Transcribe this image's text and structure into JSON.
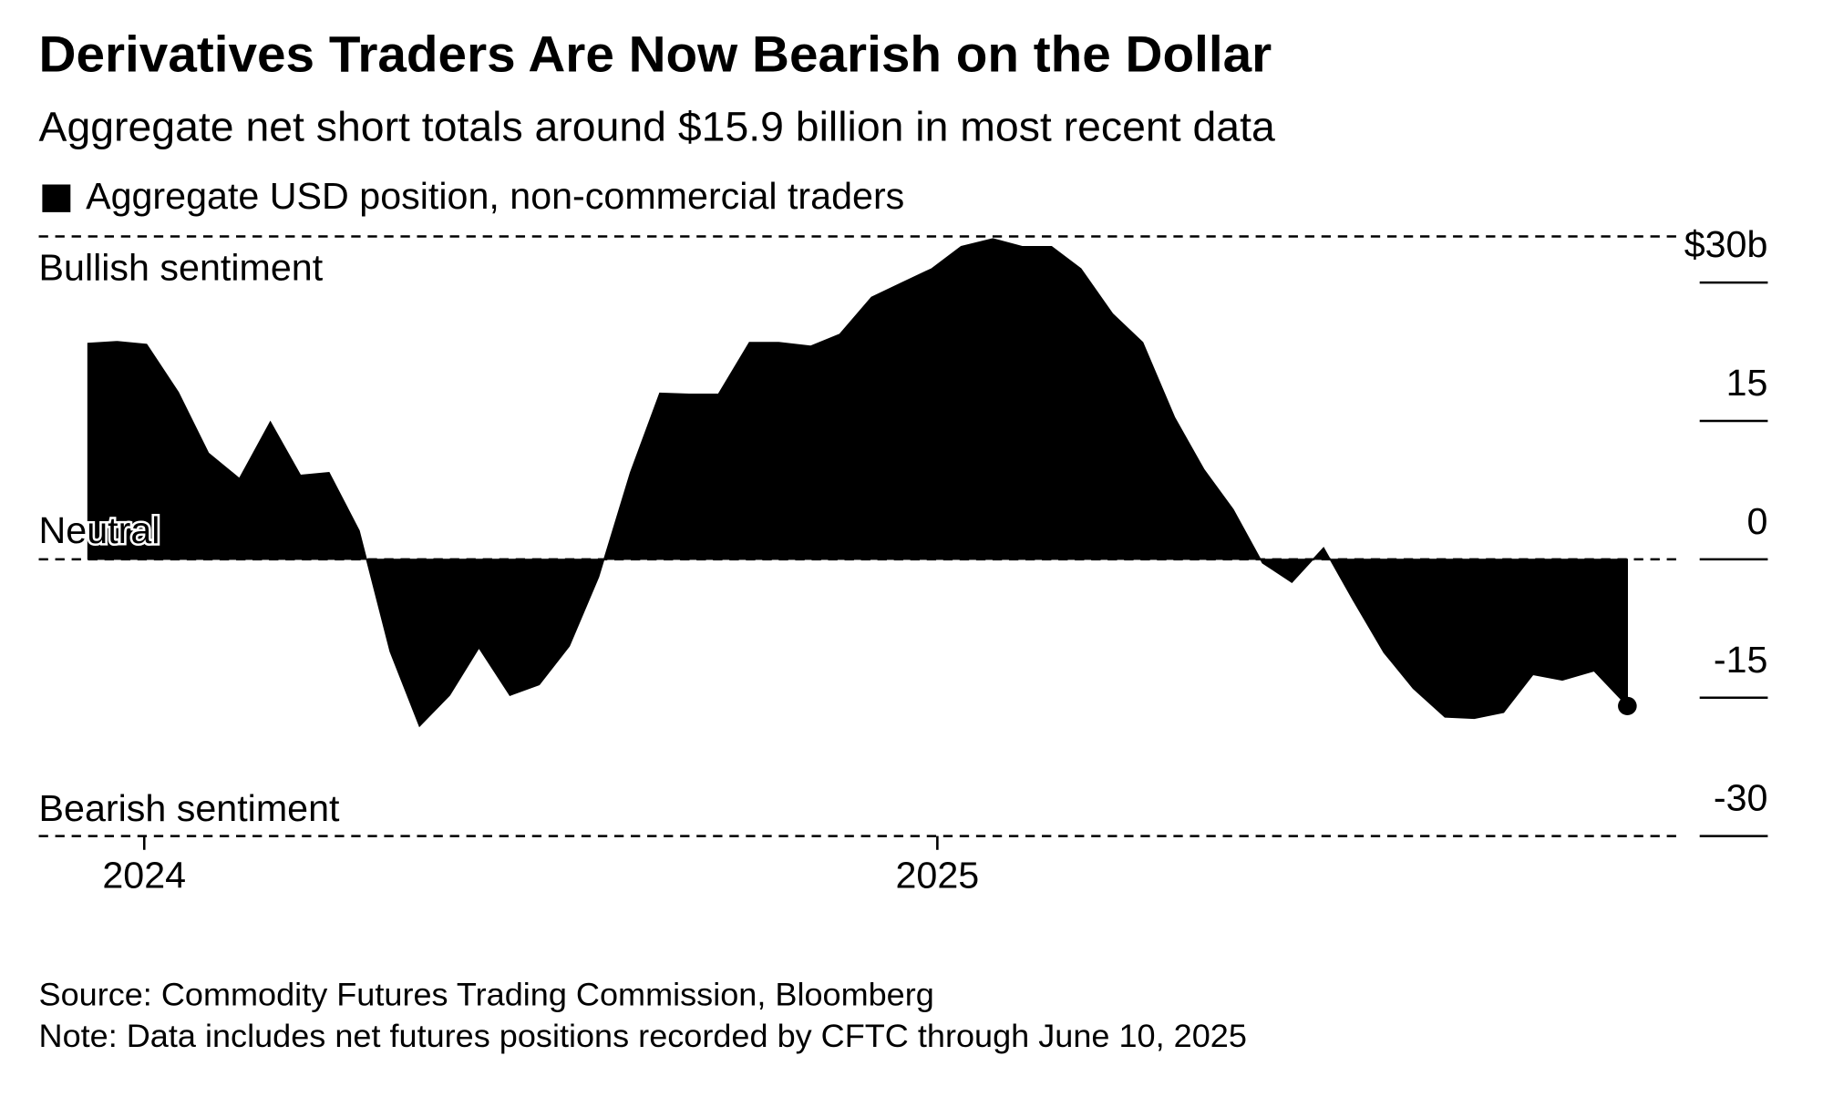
{
  "chart_data": {
    "type": "area",
    "title": "Derivatives Traders Are Now Bearish on the Dollar",
    "subtitle": "Aggregate net short totals around $15.9 billion in most recent data",
    "legend": "Aggregate USD position, non-commercial traders",
    "color": "#000000",
    "annotations": [
      "Bullish sentiment",
      "Neutral",
      "Bearish sentiment"
    ],
    "source": "Source: Commodity Futures Trading Commission, Bloomberg",
    "note": "Note: Data includes net futures positions recorded by CFTC through June 10, 2025",
    "x": [
      2023.929,
      2023.966,
      2024.003,
      2024.043,
      2024.081,
      2024.12,
      2024.159,
      2024.197,
      2024.233,
      2024.271,
      2024.31,
      2024.347,
      2024.385,
      2024.422,
      2024.461,
      2024.498,
      2024.536,
      2024.573,
      2024.613,
      2024.65,
      2024.687,
      2024.724,
      2024.763,
      2024.8,
      2024.84,
      2024.877,
      2024.917,
      2024.956,
      2024.993,
      2025.03,
      2025.07,
      2025.107,
      2025.144,
      2025.181,
      2025.221,
      2025.259,
      2025.299,
      2025.336,
      2025.373,
      2025.41,
      2025.447,
      2025.487,
      2025.524,
      2025.563,
      2025.6,
      2025.64,
      2025.677,
      2025.714,
      2025.751,
      2025.788,
      2025.828,
      2025.87
    ],
    "values": [
      23.4,
      23.6,
      23.3,
      18.1,
      11.5,
      8.75,
      14.9,
      9.1,
      9.4,
      3.1,
      -10,
      -18.1,
      -14.75,
      -9.6,
      -14.75,
      -13.6,
      -9.4,
      -1.9,
      9.4,
      18,
      17.9,
      17.9,
      23.5,
      23.5,
      23.1,
      24.4,
      28.4,
      30,
      31.5,
      33.9,
      34.75,
      33.9,
      33.9,
      31.5,
      26.6,
      23.5,
      15.4,
      9.75,
      5.4,
      -0.4,
      -2.5,
      1.25,
      -4.4,
      -10.1,
      -14,
      -17.1,
      -17.25,
      -16.6,
      -12.5,
      -13.1,
      -12.1,
      -15.9
    ],
    "xlim": [
      2023.867,
      2025.936
    ],
    "xticks": [
      2024,
      2025
    ],
    "ylim": [
      -30,
      35
    ],
    "yticks": [
      {
        "value": 30,
        "label": "$30b"
      },
      15,
      0,
      -15,
      -30
    ]
  }
}
